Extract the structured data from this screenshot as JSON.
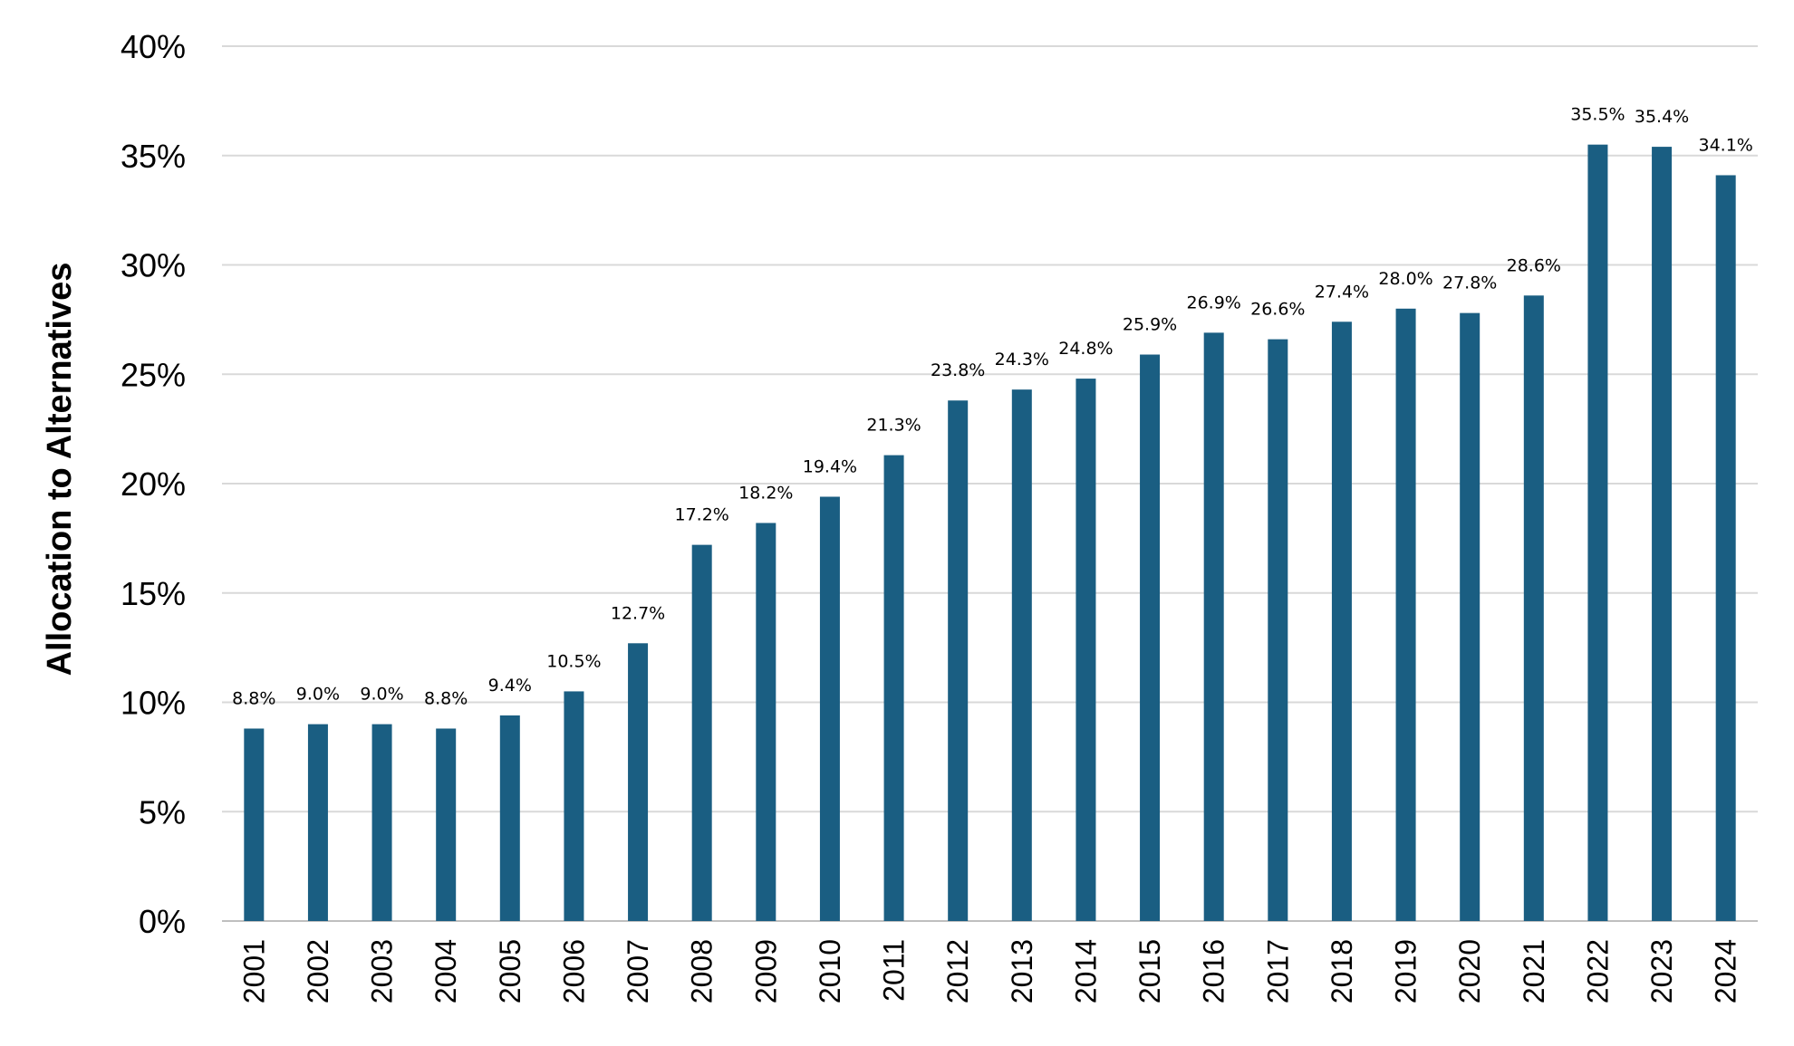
{
  "chart_data": {
    "type": "bar",
    "title": "",
    "xlabel": "",
    "ylabel": "Allocation to Alternatives",
    "categories": [
      "2001",
      "2002",
      "2003",
      "2004",
      "2005",
      "2006",
      "2007",
      "2008",
      "2009",
      "2010",
      "2011",
      "2012",
      "2013",
      "2014",
      "2015",
      "2016",
      "2017",
      "2018",
      "2019",
      "2020",
      "2021",
      "2022",
      "2023",
      "2024"
    ],
    "values": [
      8.8,
      9.0,
      9.0,
      8.8,
      9.4,
      10.5,
      12.7,
      17.2,
      18.2,
      19.4,
      21.3,
      23.8,
      24.3,
      24.8,
      25.9,
      26.9,
      26.6,
      27.4,
      28.0,
      27.8,
      28.6,
      35.5,
      35.4,
      34.1
    ],
    "value_labels": [
      "8.8%",
      "9.0%",
      "9.0%",
      "8.8%",
      "9.4%",
      "10.5%",
      "12.7%",
      "17.2%",
      "18.2%",
      "19.4%",
      "21.3%",
      "23.8%",
      "24.3%",
      "24.8%",
      "25.9%",
      "26.9%",
      "26.6%",
      "27.4%",
      "28.0%",
      "27.8%",
      "28.6%",
      "35.5%",
      "35.4%",
      "34.1%"
    ],
    "ylim": [
      0,
      40
    ],
    "yticks": [
      0,
      5,
      10,
      15,
      20,
      25,
      30,
      35,
      40
    ],
    "ytick_labels": [
      "0%",
      "5%",
      "10%",
      "15%",
      "20%",
      "25%",
      "30%",
      "35%",
      "40%"
    ],
    "grid": true,
    "legend": "none",
    "colors": {
      "bar": "#1a5e82",
      "grid": "#d9d9d9",
      "axis": "#bfbfbf"
    }
  }
}
